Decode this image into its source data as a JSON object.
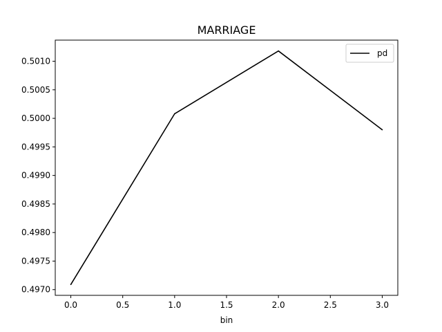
{
  "chart_data": {
    "type": "line",
    "title": "MARRIAGE",
    "xlabel": "bin",
    "ylabel": "",
    "xlim": [
      -0.15,
      3.15
    ],
    "ylim": [
      0.4969,
      0.50137
    ],
    "x_ticks": [
      0.0,
      0.5,
      1.0,
      1.5,
      2.0,
      2.5,
      3.0
    ],
    "x_tick_labels": [
      "0.0",
      "0.5",
      "1.0",
      "1.5",
      "2.0",
      "2.5",
      "3.0"
    ],
    "y_ticks": [
      0.497,
      0.4975,
      0.498,
      0.4985,
      0.499,
      0.4995,
      0.5,
      0.5005,
      0.501
    ],
    "y_tick_labels": [
      "0.4970",
      "0.4975",
      "0.4980",
      "0.4985",
      "0.4990",
      "0.4995",
      "0.5000",
      "0.5005",
      "0.5010"
    ],
    "grid": false,
    "legend_position": "top-right",
    "series": [
      {
        "name": "pd",
        "color": "#000000",
        "x": [
          0,
          1,
          2,
          3
        ],
        "y": [
          0.49709,
          0.50008,
          0.50118,
          0.4998
        ]
      }
    ]
  }
}
